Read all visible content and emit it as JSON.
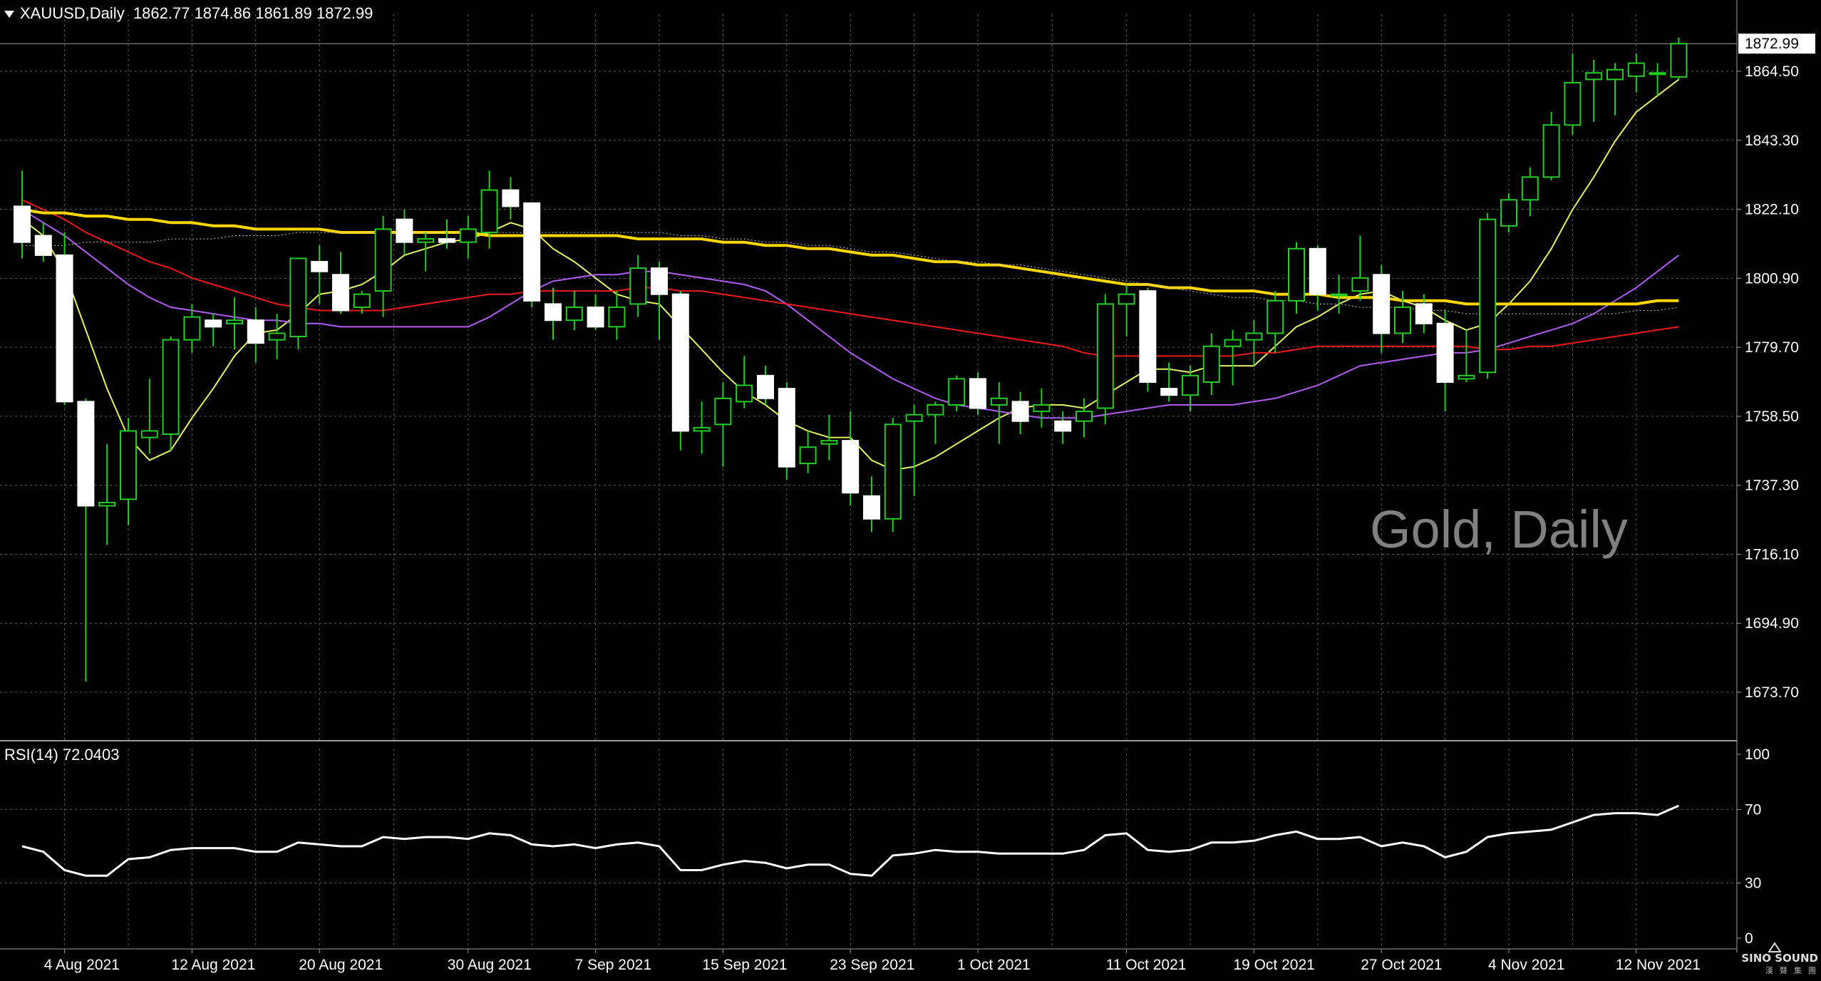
{
  "header": {
    "symbol": "XAUUSD,Daily",
    "ohlc": "1862.77 1874.86 1861.89 1872.99"
  },
  "watermark": "Gold, Daily",
  "rsi": {
    "label": "RSI(14) 72.0403"
  },
  "logo": {
    "name": "SINO SOUND",
    "sub": "漢 聲 集 團"
  },
  "colors": {
    "background": "#000000",
    "grid": "#5a5a5a",
    "candle_bull": "#ffffff",
    "wick": "#22cc22",
    "ma_fast": "#e6f064",
    "ma_purple": "#b05cf0",
    "ma_red": "#ee1a1a",
    "ma_gold": "#ffd700",
    "ma_dotted": "#c0c0c0",
    "rsi_line": "#ffffff",
    "axis_text": "#ffffff"
  },
  "chart_data": [
    {
      "type": "candlestick",
      "title": "XAUUSD,Daily",
      "current_price": 1872.99,
      "ylim": [
        1660,
        1880
      ],
      "y_ticks": [
        1673.7,
        1694.9,
        1716.1,
        1737.3,
        1758.5,
        1779.7,
        1800.9,
        1822.1,
        1843.3,
        1864.5
      ],
      "y_tick_labels": [
        "1673.70",
        "1694.90",
        "1716.10",
        "1737.30",
        "1758.50",
        "1779.70",
        "1800.90",
        "1822.10",
        "1843.30",
        "1864.50"
      ],
      "x_tick_labels": [
        "4 Aug 2021",
        "12 Aug 2021",
        "20 Aug 2021",
        "30 Aug 2021",
        "7 Sep 2021",
        "15 Sep 2021",
        "23 Sep 2021",
        "1 Oct 2021",
        "11 Oct 2021",
        "19 Oct 2021",
        "27 Oct 2021",
        "4 Nov 2021",
        "12 Nov 2021"
      ],
      "x_tick_dates": [
        "2021-08-04",
        "2021-08-12",
        "2021-08-20",
        "2021-08-30",
        "2021-09-07",
        "2021-09-15",
        "2021-09-23",
        "2021-10-01",
        "2021-10-11",
        "2021-10-19",
        "2021-10-27",
        "2021-11-04",
        "2021-11-12"
      ],
      "candles": [
        {
          "o": 1823,
          "h": 1834,
          "l": 1807,
          "c": 1812
        },
        {
          "o": 1814,
          "h": 1818,
          "l": 1806,
          "c": 1808
        },
        {
          "o": 1808,
          "h": 1815,
          "l": 1762,
          "c": 1763
        },
        {
          "o": 1763,
          "h": 1764,
          "l": 1677,
          "c": 1731
        },
        {
          "o": 1731,
          "h": 1750,
          "l": 1719,
          "c": 1732
        },
        {
          "o": 1733,
          "h": 1758,
          "l": 1725,
          "c": 1754
        },
        {
          "o": 1752,
          "h": 1770,
          "l": 1747,
          "c": 1754
        },
        {
          "o": 1753,
          "h": 1783,
          "l": 1748,
          "c": 1782
        },
        {
          "o": 1782,
          "h": 1793,
          "l": 1778,
          "c": 1789
        },
        {
          "o": 1788,
          "h": 1790,
          "l": 1780,
          "c": 1786
        },
        {
          "o": 1787,
          "h": 1795,
          "l": 1779,
          "c": 1788
        },
        {
          "o": 1788,
          "h": 1792,
          "l": 1775,
          "c": 1781
        },
        {
          "o": 1782,
          "h": 1790,
          "l": 1776,
          "c": 1784
        },
        {
          "o": 1783,
          "h": 1807,
          "l": 1779,
          "c": 1807
        },
        {
          "o": 1806,
          "h": 1811,
          "l": 1793,
          "c": 1803
        },
        {
          "o": 1802,
          "h": 1809,
          "l": 1790,
          "c": 1791
        },
        {
          "o": 1792,
          "h": 1797,
          "l": 1790,
          "c": 1796
        },
        {
          "o": 1797,
          "h": 1820,
          "l": 1789,
          "c": 1816
        },
        {
          "o": 1819,
          "h": 1822,
          "l": 1808,
          "c": 1812
        },
        {
          "o": 1812,
          "h": 1815,
          "l": 1803,
          "c": 1813
        },
        {
          "o": 1813,
          "h": 1819,
          "l": 1810,
          "c": 1812
        },
        {
          "o": 1812,
          "h": 1820,
          "l": 1807,
          "c": 1816
        },
        {
          "o": 1815,
          "h": 1834,
          "l": 1810,
          "c": 1828
        },
        {
          "o": 1828,
          "h": 1832,
          "l": 1819,
          "c": 1823
        },
        {
          "o": 1824,
          "h": 1824,
          "l": 1792,
          "c": 1794
        },
        {
          "o": 1793,
          "h": 1798,
          "l": 1782,
          "c": 1788
        },
        {
          "o": 1788,
          "h": 1797,
          "l": 1785,
          "c": 1792
        },
        {
          "o": 1792,
          "h": 1796,
          "l": 1785,
          "c": 1786
        },
        {
          "o": 1786,
          "h": 1797,
          "l": 1782,
          "c": 1792
        },
        {
          "o": 1793,
          "h": 1808,
          "l": 1789,
          "c": 1804
        },
        {
          "o": 1804,
          "h": 1806,
          "l": 1782,
          "c": 1796
        },
        {
          "o": 1796,
          "h": 1797,
          "l": 1748,
          "c": 1754
        },
        {
          "o": 1754,
          "h": 1763,
          "l": 1747,
          "c": 1755
        },
        {
          "o": 1756,
          "h": 1769,
          "l": 1743,
          "c": 1764
        },
        {
          "o": 1763,
          "h": 1777,
          "l": 1761,
          "c": 1768
        },
        {
          "o": 1771,
          "h": 1774,
          "l": 1762,
          "c": 1764
        },
        {
          "o": 1767,
          "h": 1769,
          "l": 1739,
          "c": 1743
        },
        {
          "o": 1744,
          "h": 1754,
          "l": 1741,
          "c": 1749
        },
        {
          "o": 1750,
          "h": 1759,
          "l": 1745,
          "c": 1751
        },
        {
          "o": 1751,
          "h": 1760,
          "l": 1731,
          "c": 1735
        },
        {
          "o": 1734,
          "h": 1740,
          "l": 1723,
          "c": 1727
        },
        {
          "o": 1727,
          "h": 1758,
          "l": 1723,
          "c": 1756
        },
        {
          "o": 1757,
          "h": 1762,
          "l": 1734,
          "c": 1759
        },
        {
          "o": 1759,
          "h": 1763,
          "l": 1750,
          "c": 1762
        },
        {
          "o": 1762,
          "h": 1771,
          "l": 1760,
          "c": 1770
        },
        {
          "o": 1770,
          "h": 1772,
          "l": 1759,
          "c": 1761
        },
        {
          "o": 1762,
          "h": 1769,
          "l": 1750,
          "c": 1764
        },
        {
          "o": 1763,
          "h": 1766,
          "l": 1753,
          "c": 1757
        },
        {
          "o": 1760,
          "h": 1767,
          "l": 1755,
          "c": 1762
        },
        {
          "o": 1757,
          "h": 1760,
          "l": 1750,
          "c": 1754
        },
        {
          "o": 1757,
          "h": 1764,
          "l": 1752,
          "c": 1760
        },
        {
          "o": 1761,
          "h": 1796,
          "l": 1756,
          "c": 1793
        },
        {
          "o": 1793,
          "h": 1799,
          "l": 1783,
          "c": 1796
        },
        {
          "o": 1797,
          "h": 1798,
          "l": 1766,
          "c": 1769
        },
        {
          "o": 1767,
          "h": 1775,
          "l": 1763,
          "c": 1765
        },
        {
          "o": 1765,
          "h": 1774,
          "l": 1760,
          "c": 1771
        },
        {
          "o": 1769,
          "h": 1784,
          "l": 1765,
          "c": 1780
        },
        {
          "o": 1780,
          "h": 1785,
          "l": 1768,
          "c": 1782
        },
        {
          "o": 1782,
          "h": 1788,
          "l": 1774,
          "c": 1784
        },
        {
          "o": 1784,
          "h": 1797,
          "l": 1778,
          "c": 1794
        },
        {
          "o": 1794,
          "h": 1812,
          "l": 1790,
          "c": 1810
        },
        {
          "o": 1810,
          "h": 1811,
          "l": 1791,
          "c": 1796
        },
        {
          "o": 1796,
          "h": 1802,
          "l": 1790,
          "c": 1796
        },
        {
          "o": 1797,
          "h": 1814,
          "l": 1794,
          "c": 1801
        },
        {
          "o": 1802,
          "h": 1805,
          "l": 1778,
          "c": 1784
        },
        {
          "o": 1784,
          "h": 1797,
          "l": 1781,
          "c": 1792
        },
        {
          "o": 1793,
          "h": 1796,
          "l": 1784,
          "c": 1787
        },
        {
          "o": 1787,
          "h": 1791,
          "l": 1760,
          "c": 1769
        },
        {
          "o": 1770,
          "h": 1785,
          "l": 1769,
          "c": 1771
        },
        {
          "o": 1772,
          "h": 1821,
          "l": 1770,
          "c": 1819
        },
        {
          "o": 1817,
          "h": 1827,
          "l": 1815,
          "c": 1825
        },
        {
          "o": 1825,
          "h": 1835,
          "l": 1820,
          "c": 1832
        },
        {
          "o": 1832,
          "h": 1852,
          "l": 1831,
          "c": 1848
        },
        {
          "o": 1848,
          "h": 1870,
          "l": 1845,
          "c": 1861
        },
        {
          "o": 1862,
          "h": 1868,
          "l": 1849,
          "c": 1864
        },
        {
          "o": 1862,
          "h": 1867,
          "l": 1851,
          "c": 1865
        },
        {
          "o": 1863,
          "h": 1870,
          "l": 1858,
          "c": 1867
        },
        {
          "o": 1864,
          "h": 1867,
          "l": 1857,
          "c": 1864
        },
        {
          "o": 1862.77,
          "h": 1874.86,
          "l": 1861.89,
          "c": 1872.99
        }
      ],
      "series": [
        {
          "color": "#e6f064",
          "values": [
            1819,
            1814,
            1803,
            1785,
            1767,
            1752,
            1745,
            1748,
            1758,
            1767,
            1777,
            1784,
            1785,
            1790,
            1796,
            1797,
            1799,
            1803,
            1808,
            1810,
            1812,
            1813,
            1815,
            1818,
            1816,
            1810,
            1806,
            1801,
            1796,
            1794,
            1793,
            1786,
            1779,
            1772,
            1766,
            1762,
            1757,
            1754,
            1752,
            1752,
            1745,
            1742,
            1743,
            1746,
            1750,
            1754,
            1758,
            1761,
            1762,
            1762,
            1761,
            1765,
            1769,
            1773,
            1773,
            1772,
            1774,
            1774,
            1774,
            1780,
            1786,
            1789,
            1793,
            1796,
            1797,
            1794,
            1792,
            1788,
            1785,
            1787,
            1793,
            1800,
            1810,
            1822,
            1832,
            1843,
            1852,
            1857,
            1862
          ]
        },
        {
          "color": "#b05cf0",
          "values": [
            1822,
            1818,
            1814,
            1809,
            1804,
            1799,
            1795,
            1792,
            1791,
            1790,
            1789,
            1788,
            1788,
            1787,
            1787,
            1786,
            1786,
            1786,
            1786,
            1786,
            1786,
            1786,
            1789,
            1793,
            1797,
            1800,
            1801,
            1802,
            1802,
            1803,
            1803,
            1802,
            1801,
            1800,
            1799,
            1797,
            1793,
            1788,
            1783,
            1778,
            1774,
            1770,
            1767,
            1764,
            1762,
            1761,
            1760,
            1759,
            1758,
            1758,
            1758,
            1759,
            1760,
            1761,
            1762,
            1762,
            1762,
            1762,
            1763,
            1764,
            1766,
            1768,
            1771,
            1774,
            1775,
            1776,
            1777,
            1778,
            1778,
            1779,
            1781,
            1783,
            1785,
            1787,
            1790,
            1794,
            1798,
            1803,
            1808
          ]
        },
        {
          "color": "#ee1a1a",
          "values": [
            1825,
            1822,
            1819,
            1815,
            1812,
            1809,
            1806,
            1804,
            1801,
            1799,
            1797,
            1795,
            1793,
            1792,
            1791,
            1791,
            1791,
            1791,
            1792,
            1793,
            1794,
            1795,
            1796,
            1796,
            1797,
            1797,
            1797,
            1797,
            1797,
            1798,
            1798,
            1797,
            1797,
            1796,
            1795,
            1794,
            1793,
            1792,
            1791,
            1790,
            1789,
            1788,
            1787,
            1786,
            1785,
            1784,
            1783,
            1782,
            1781,
            1780,
            1778,
            1777,
            1777,
            1777,
            1777,
            1777,
            1777,
            1777,
            1778,
            1778,
            1779,
            1780,
            1780,
            1780,
            1780,
            1780,
            1780,
            1780,
            1780,
            1779,
            1779,
            1780,
            1780,
            1781,
            1782,
            1783,
            1784,
            1785,
            1786
          ]
        },
        {
          "color": "#ffd700",
          "values": [
            1822,
            1821,
            1821,
            1820,
            1820,
            1819,
            1819,
            1818,
            1818,
            1817,
            1817,
            1816,
            1816,
            1816,
            1816,
            1815,
            1815,
            1815,
            1815,
            1815,
            1815,
            1815,
            1814,
            1814,
            1814,
            1814,
            1814,
            1814,
            1814,
            1813,
            1813,
            1813,
            1813,
            1812,
            1812,
            1811,
            1811,
            1810,
            1810,
            1809,
            1808,
            1808,
            1807,
            1806,
            1806,
            1805,
            1805,
            1804,
            1803,
            1802,
            1801,
            1800,
            1799,
            1799,
            1798,
            1798,
            1797,
            1797,
            1797,
            1796,
            1796,
            1796,
            1795,
            1795,
            1795,
            1794,
            1794,
            1794,
            1793,
            1793,
            1793,
            1793,
            1793,
            1793,
            1793,
            1793,
            1793,
            1794,
            1794
          ]
        },
        {
          "color": "#c0c0c0",
          "dashed": true,
          "values": [
            1811,
            1811,
            1811,
            1812,
            1812,
            1812,
            1812,
            1813,
            1813,
            1813,
            1814,
            1814,
            1814,
            1815,
            1815,
            1815,
            1815,
            1815,
            1815,
            1815,
            1815,
            1815,
            1815,
            1815,
            1815,
            1815,
            1815,
            1815,
            1815,
            1815,
            1815,
            1814,
            1814,
            1813,
            1813,
            1812,
            1812,
            1811,
            1811,
            1810,
            1809,
            1809,
            1808,
            1807,
            1806,
            1806,
            1805,
            1805,
            1804,
            1803,
            1802,
            1801,
            1800,
            1799,
            1798,
            1797,
            1796,
            1795,
            1795,
            1794,
            1794,
            1793,
            1793,
            1792,
            1792,
            1792,
            1791,
            1791,
            1790,
            1790,
            1790,
            1790,
            1790,
            1790,
            1790,
            1790,
            1791,
            1791,
            1792
          ]
        }
      ]
    },
    {
      "type": "line",
      "title": "RSI(14) 72.0403",
      "ylim": [
        0,
        100
      ],
      "y_ticks": [
        0,
        30,
        70,
        100
      ],
      "y_tick_labels": [
        "0",
        "30",
        "70",
        "100"
      ],
      "series": [
        {
          "color": "#ffffff",
          "values": [
            50,
            47,
            37,
            34,
            34,
            43,
            44,
            48,
            49,
            49,
            49,
            47,
            47,
            52,
            51,
            50,
            50,
            55,
            54,
            55,
            55,
            54,
            57,
            56,
            51,
            50,
            51,
            49,
            51,
            52,
            50,
            37,
            37,
            40,
            42,
            41,
            38,
            40,
            40,
            35,
            34,
            45,
            46,
            48,
            47,
            47,
            46,
            46,
            46,
            46,
            48,
            56,
            57,
            48,
            47,
            48,
            52,
            52,
            53,
            56,
            58,
            54,
            54,
            55,
            50,
            52,
            50,
            44,
            47,
            55,
            57,
            58,
            59,
            63,
            67,
            68,
            68,
            67,
            72.04
          ]
        }
      ]
    }
  ]
}
